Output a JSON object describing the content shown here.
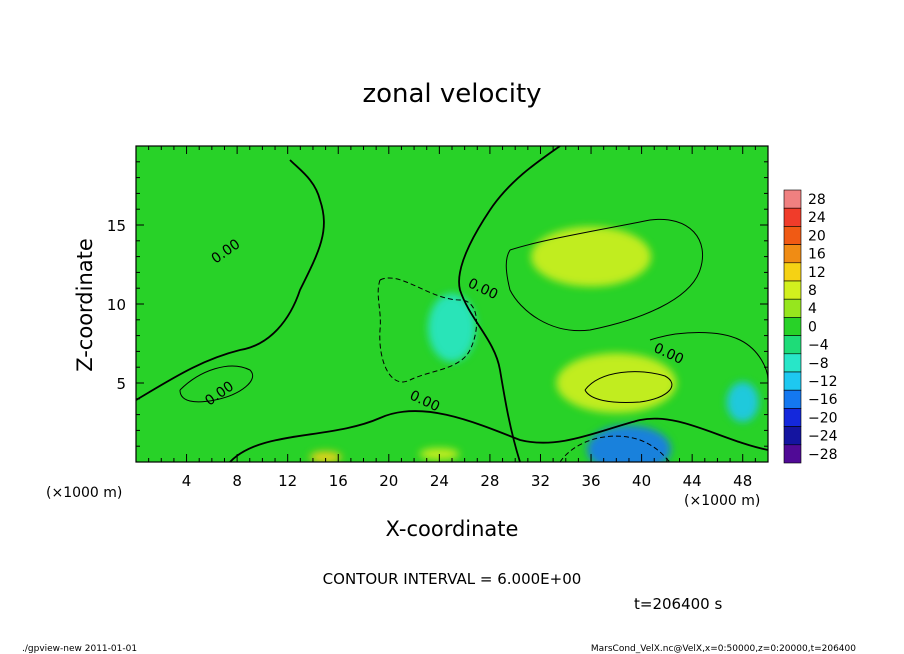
{
  "chart_data": {
    "type": "heatmap",
    "title": "zonal velocity",
    "xlabel": "X-coordinate",
    "ylabel": "Z-coordinate",
    "x_unit": "(×1000 m)",
    "y_unit": "(×1000 m)",
    "xlim": [
      0,
      50
    ],
    "ylim": [
      0,
      20
    ],
    "x_ticks": [
      4,
      8,
      12,
      16,
      20,
      24,
      28,
      32,
      36,
      40,
      44,
      48
    ],
    "y_ticks": [
      5,
      10,
      15
    ],
    "contour_interval_text": "CONTOUR INTERVAL = 6.000E+00",
    "contour_labels": [
      {
        "text": "0.00",
        "x": 7.3,
        "z": 13.1
      },
      {
        "text": "0.00",
        "x": 27.3,
        "z": 10.7
      },
      {
        "text": "0.00",
        "x": 42.0,
        "z": 6.6
      },
      {
        "text": "0.00",
        "x": 6.8,
        "z": 4.1
      },
      {
        "text": "0.00",
        "x": 22.7,
        "z": 3.6
      }
    ],
    "colorbar": {
      "levels": [
        28,
        24,
        20,
        16,
        12,
        8,
        4,
        0,
        -4,
        -8,
        -12,
        -16,
        -20,
        -24,
        -28
      ],
      "labels": [
        "28",
        "24",
        "20",
        "16",
        "12",
        "8",
        "4",
        "0",
        "−4",
        "−8",
        "−12",
        "−16",
        "−20",
        "−24",
        "−28"
      ],
      "colors": [
        "#f08080",
        "#f03c2a",
        "#f05a14",
        "#f08c14",
        "#f5d214",
        "#d2f01e",
        "#96e61e",
        "#28d228",
        "#1edc78",
        "#28e6c8",
        "#1ec8f0",
        "#1478f0",
        "#1428dc",
        "#1414a0",
        "#500a96"
      ]
    },
    "field_features": [
      {
        "kind": "background",
        "value": 1
      },
      {
        "kind": "positive-maximum",
        "x": 36,
        "z": 13,
        "value": 8
      },
      {
        "kind": "positive-maximum",
        "x": 38,
        "z": 5,
        "value": 8
      },
      {
        "kind": "positive-maximum",
        "x": 15,
        "z": 0.3,
        "value": 14
      },
      {
        "kind": "positive-maximum",
        "x": 24,
        "z": 0.5,
        "value": 10
      },
      {
        "kind": "negative-minimum",
        "x": 25,
        "z": 8.5,
        "value": -8
      },
      {
        "kind": "negative-minimum",
        "x": 39,
        "z": 0.8,
        "value": -14
      },
      {
        "kind": "negative-minimum",
        "x": 48,
        "z": 3.8,
        "value": -9
      }
    ],
    "time_text": "t=206400 s"
  },
  "footer": {
    "left": "./gpview-new  2011-01-01",
    "right": "MarsCond_VelX.nc@VelX,x=0:50000,z=0:20000,t=206400"
  },
  "colors": {
    "background": "#ffffff",
    "axis": "#000000"
  }
}
